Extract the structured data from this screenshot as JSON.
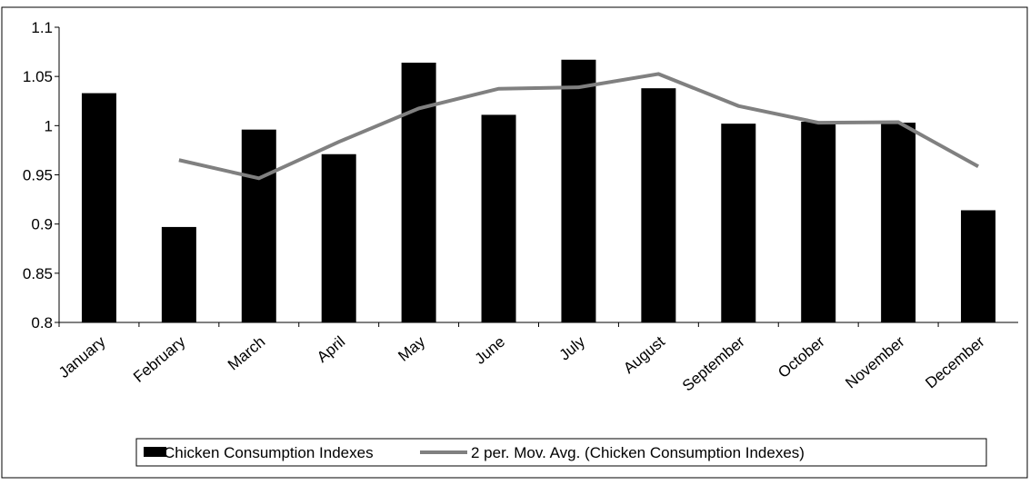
{
  "chart_data": {
    "type": "bar",
    "categories": [
      "January",
      "February",
      "March",
      "April",
      "May",
      "June",
      "July",
      "August",
      "September",
      "October",
      "November",
      "December"
    ],
    "series": [
      {
        "name": "Chicken Consumption Indexes",
        "type": "bar",
        "color": "#000000",
        "values": [
          1.033,
          0.897,
          0.996,
          0.971,
          1.064,
          1.011,
          1.067,
          1.038,
          1.002,
          1.004,
          1.003,
          0.914
        ]
      },
      {
        "name": "2 per. Mov. Avg. (Chicken Consumption Indexes)",
        "type": "line",
        "color": "#808080",
        "values": [
          null,
          0.965,
          0.9465,
          0.9835,
          1.0175,
          1.0375,
          1.039,
          1.0525,
          1.02,
          1.003,
          1.0035,
          0.9585
        ]
      }
    ],
    "ylim": [
      0.8,
      1.1
    ],
    "yticks": [
      0.8,
      0.85,
      0.9,
      0.95,
      1,
      1.05,
      1.1
    ],
    "legend": "bottom"
  }
}
